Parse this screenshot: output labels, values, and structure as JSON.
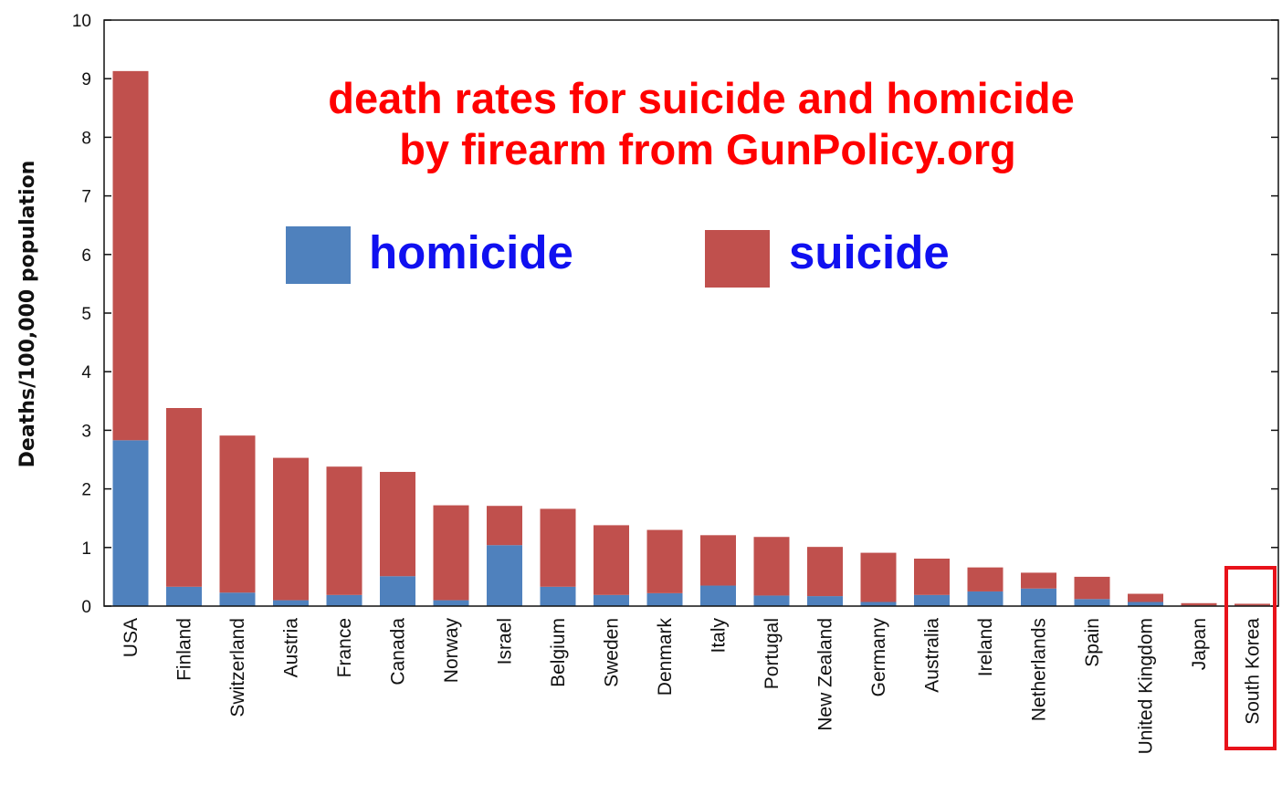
{
  "chart_data": {
    "type": "bar",
    "stacked": true,
    "title_lines": [
      "death rates for suicide and homicide",
      "by firearm from GunPolicy.org"
    ],
    "xlabel": "",
    "ylabel": "Deaths/100,000 population",
    "ylim": [
      0,
      10
    ],
    "yticks": [
      "0",
      "1",
      "2",
      "3",
      "4",
      "5",
      "6",
      "7",
      "8",
      "9",
      "10"
    ],
    "grid": false,
    "legend_placement": "top-center",
    "categories": [
      "USA",
      "Finland",
      "Switzerland",
      "Austria",
      "France",
      "Canada",
      "Norway",
      "Israel",
      "Belgium",
      "Sweden",
      "Denmark",
      "Italy",
      "Portugal",
      "New Zealand",
      "Germany",
      "Australia",
      "Ireland",
      "Netherlands",
      "Spain",
      "United Kingdom",
      "Japan",
      "South Korea"
    ],
    "series": [
      {
        "name": "homicide",
        "color": "#4f81bd",
        "values": [
          2.83,
          0.33,
          0.23,
          0.1,
          0.19,
          0.51,
          0.1,
          1.04,
          0.33,
          0.19,
          0.22,
          0.35,
          0.18,
          0.17,
          0.07,
          0.19,
          0.25,
          0.3,
          0.12,
          0.07,
          0.01,
          0.01
        ]
      },
      {
        "name": "suicide",
        "color": "#c0504d",
        "values": [
          6.3,
          3.05,
          2.68,
          2.43,
          2.19,
          1.78,
          1.62,
          0.67,
          1.33,
          1.19,
          1.08,
          0.86,
          1.0,
          0.84,
          0.84,
          0.62,
          0.41,
          0.27,
          0.38,
          0.14,
          0.04,
          0.03
        ]
      }
    ],
    "highlighted_category": "South Korea",
    "highlight_color": "#e8121a"
  },
  "colors": {
    "title": "#ff0000",
    "legend_text": "#1010f0"
  }
}
